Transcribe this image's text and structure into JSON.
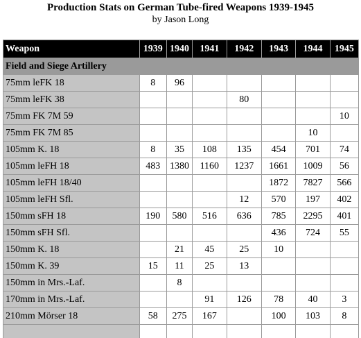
{
  "title": "Production Stats on German Tube-fired Weapons 1939-1945",
  "byline": "by Jason Long",
  "table": {
    "header": [
      "Weapon",
      "1939",
      "1940",
      "1941",
      "1942",
      "1943",
      "1944",
      "1945"
    ],
    "section": "Field and Siege Artillery",
    "rows": [
      {
        "name": "75mm leFK 18",
        "values": [
          "8",
          "96",
          "",
          "",
          "",
          "",
          ""
        ]
      },
      {
        "name": "75mm leFK 38",
        "values": [
          "",
          "",
          "",
          "80",
          "",
          "",
          ""
        ]
      },
      {
        "name": "75mm FK 7M 59",
        "values": [
          "",
          "",
          "",
          "",
          "",
          "",
          "10"
        ]
      },
      {
        "name": "75mm FK 7M 85",
        "values": [
          "",
          "",
          "",
          "",
          "",
          "10",
          ""
        ]
      },
      {
        "name": "105mm K. 18",
        "values": [
          "8",
          "35",
          "108",
          "135",
          "454",
          "701",
          "74"
        ]
      },
      {
        "name": "105mm leFH 18",
        "values": [
          "483",
          "1380",
          "1160",
          "1237",
          "1661",
          "1009",
          "56"
        ]
      },
      {
        "name": "105mm leFH 18/40",
        "values": [
          "",
          "",
          "",
          "",
          "1872",
          "7827",
          "566"
        ]
      },
      {
        "name": "105mm leFH Sfl.",
        "values": [
          "",
          "",
          "",
          "12",
          "570",
          "197",
          "402"
        ]
      },
      {
        "name": "150mm sFH 18",
        "values": [
          "190",
          "580",
          "516",
          "636",
          "785",
          "2295",
          "401"
        ]
      },
      {
        "name": "150mm sFH Sfl.",
        "values": [
          "",
          "",
          "",
          "",
          "436",
          "724",
          "55"
        ]
      },
      {
        "name": "150mm K. 18",
        "values": [
          "",
          "21",
          "45",
          "25",
          "10",
          "",
          ""
        ]
      },
      {
        "name": "150mm K. 39",
        "values": [
          "15",
          "11",
          "25",
          "13",
          "",
          "",
          ""
        ]
      },
      {
        "name": "150mm in Mrs.-Laf.",
        "values": [
          "",
          "8",
          "",
          "",
          "",
          "",
          ""
        ]
      },
      {
        "name": "170mm in Mrs.-Laf.",
        "values": [
          "",
          "",
          "91",
          "126",
          "78",
          "40",
          "3"
        ]
      },
      {
        "name": "210mm Mörser 18",
        "values": [
          "58",
          "275",
          "167",
          "",
          "100",
          "103",
          "8"
        ]
      },
      {
        "name": "",
        "values": [
          "",
          "",
          "",
          "",
          "",
          "",
          ""
        ]
      }
    ]
  }
}
